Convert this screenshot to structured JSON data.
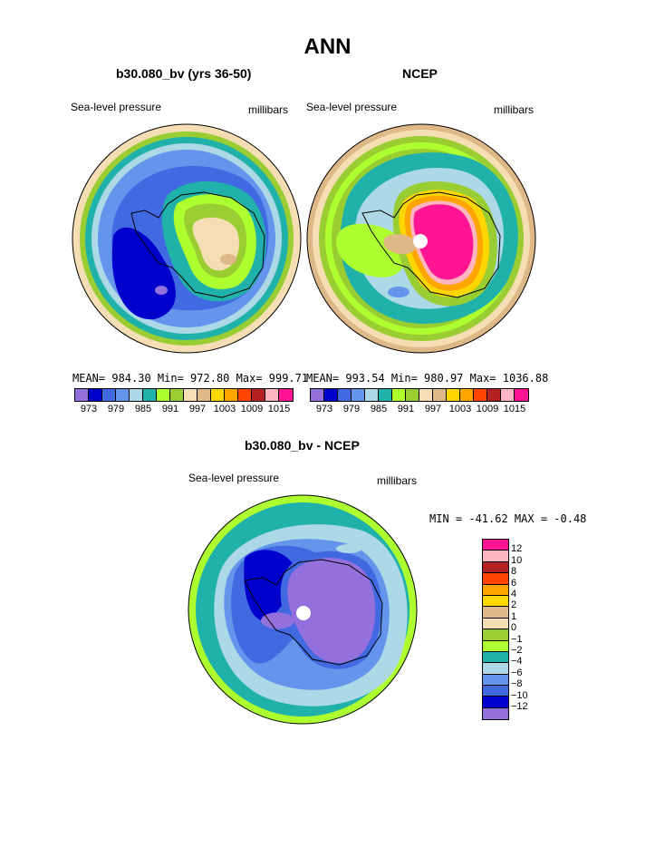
{
  "title": "ANN",
  "panels": [
    {
      "title": "b30.080_bv (yrs 36-50)",
      "left_label": "Sea-level pressure",
      "right_label": "millibars",
      "stats": "MEAN= 984.30   Min= 972.80   Max= 999.71"
    },
    {
      "title": "NCEP",
      "left_label": "Sea-level pressure",
      "right_label": "millibars",
      "stats": "MEAN= 993.54   Min= 980.97   Max= 1036.88"
    }
  ],
  "diff_panel": {
    "title": "b30.080_bv - NCEP",
    "left_label": "Sea-level pressure",
    "right_label": "millibars",
    "stats": "MIN = -41.62  MAX =  -0.48"
  },
  "colorbar_top": {
    "labels": [
      "973",
      "979",
      "985",
      "991",
      "997",
      "1003",
      "1009",
      "1015"
    ],
    "colors": [
      "#9370db",
      "#0000cd",
      "#4169e1",
      "#6495ed",
      "#add8e6",
      "#20b2aa",
      "#adff2f",
      "#9acd32",
      "#f5deb3",
      "#deb887",
      "#ffd700",
      "#ffa500",
      "#ff4500",
      "#b22222",
      "#ffb6c1",
      "#ff1493"
    ]
  },
  "colorbar_diff": {
    "labels": [
      "12",
      "10",
      "8",
      "6",
      "4",
      "2",
      "1",
      "0",
      "−1",
      "−2",
      "−4",
      "−6",
      "−8",
      "−10",
      "−12"
    ],
    "colors": [
      "#ff1493",
      "#ffb6c1",
      "#b22222",
      "#ff4500",
      "#ffa500",
      "#ffd700",
      "#deb887",
      "#f5deb3",
      "#9acd32",
      "#adff2f",
      "#20b2aa",
      "#add8e6",
      "#6495ed",
      "#4169e1",
      "#0000cd",
      "#9370db"
    ]
  }
}
